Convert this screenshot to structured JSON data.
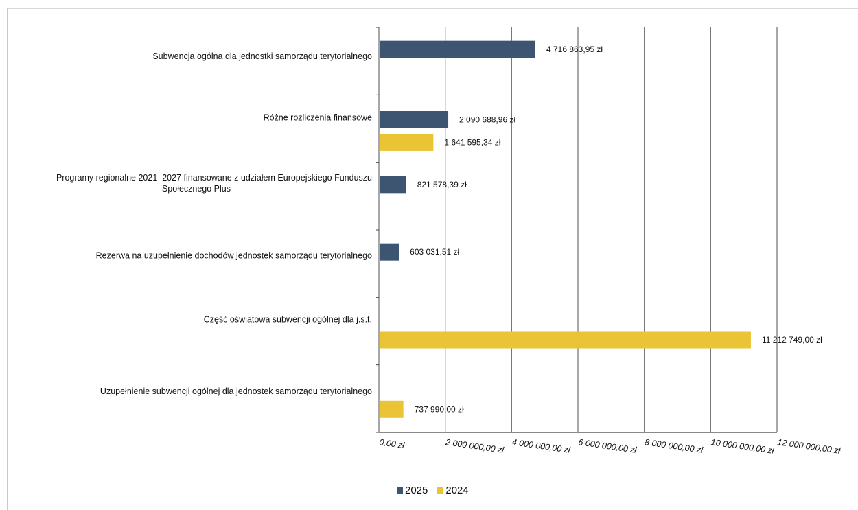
{
  "chart_data": {
    "type": "bar",
    "orientation": "horizontal",
    "categories": [
      "Subwencja ogólna dla jednostki samorządu terytorialnego",
      "Różne rozliczenia finansowe",
      "Programy regionalne 2021–2027 finansowane z udziałem Europejskiego Funduszu Społecznego Plus",
      "Rezerwa na uzupełnienie dochodów jednostek samorządu terytorialnego",
      "Część oświatowa subwencji ogólnej dla j.s.t.",
      "Uzupełnienie subwencji ogólnej dla jednostek samorządu terytorialnego"
    ],
    "category_lines": [
      [
        "Subwencja ogólna dla jednostki samorządu terytorialnego"
      ],
      [
        "Różne rozliczenia finansowe"
      ],
      [
        "Programy regionalne 2021–2027 finansowane z udziałem Europejskiego Funduszu",
        "Społecznego Plus"
      ],
      [
        "Rezerwa na uzupełnienie dochodów jednostek samorządu terytorialnego"
      ],
      [
        "Część oświatowa subwencji ogólnej dla j.s.t."
      ],
      [
        "Uzupełnienie subwencji ogólnej dla jednostek samorządu terytorialnego"
      ]
    ],
    "series": [
      {
        "name": "2025",
        "color": "#3d5570",
        "values": [
          4716863.95,
          2090688.96,
          821578.39,
          603031.51,
          null,
          null
        ],
        "labels": [
          "4 716 863,95 zł",
          "2 090 688,96 zł",
          "821 578,39 zł",
          "603 031,51 zł",
          null,
          null
        ]
      },
      {
        "name": "2024",
        "color": "#ebc435",
        "values": [
          null,
          1641595.34,
          null,
          null,
          11212749.0,
          737990.0
        ],
        "labels": [
          null,
          "1 641 595,34 zł",
          null,
          null,
          "11 212 749,00 zł",
          "737 990,00 zł"
        ]
      }
    ],
    "xlim": [
      0,
      12000000
    ],
    "x_ticks": [
      0,
      2000000,
      4000000,
      6000000,
      8000000,
      10000000,
      12000000
    ],
    "x_tick_labels": [
      "0,00 zł",
      "2 000 000,00 zł",
      "4 000 000,00 zł",
      "6 000 000,00 zł",
      "8 000 000,00 zł",
      "10 000 000,00 zł",
      "12 000 000,00 zł"
    ],
    "grid": true,
    "legend_position": "bottom",
    "title": "",
    "xlabel": "",
    "ylabel": ""
  },
  "legend": {
    "items": [
      {
        "label": "2025",
        "color": "#3d5570"
      },
      {
        "label": "2024",
        "color": "#ebc435"
      }
    ]
  }
}
